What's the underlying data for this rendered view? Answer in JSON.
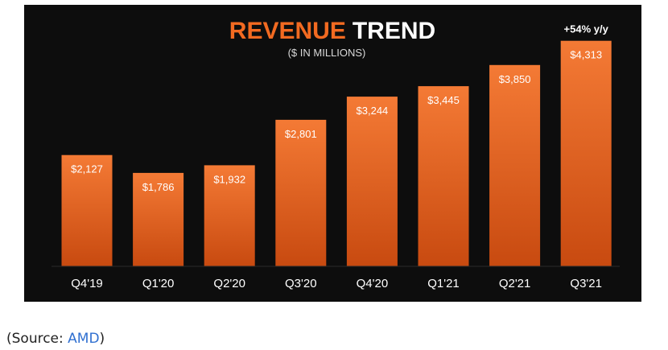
{
  "colors": {
    "background": "#0d0d0d",
    "title_accent": "#f26a21",
    "title_main": "#ffffff",
    "bar_top": "#f47a35",
    "bar_bottom": "#c84a10",
    "label_text": "#ffffff",
    "link": "#2f6fd0"
  },
  "chart_data": {
    "type": "bar",
    "title_accent": "REVENUE",
    "title_main": "TREND",
    "subtitle": "($ IN MILLIONS)",
    "categories": [
      "Q4'19",
      "Q1'20",
      "Q2'20",
      "Q3'20",
      "Q4'20",
      "Q1'21",
      "Q2'21",
      "Q3'21"
    ],
    "values": [
      2127,
      1786,
      1932,
      2801,
      3244,
      3445,
      3850,
      4313
    ],
    "value_labels": [
      "$2,127",
      "$1,786",
      "$1,932",
      "$2,801",
      "$3,244",
      "$3,445",
      "$3,850",
      "$4,313"
    ],
    "annotation": "+54% y/y",
    "ylim": [
      0,
      5000
    ],
    "grid": false,
    "legend": "none"
  },
  "source": {
    "prefix": "(Source: ",
    "link_text": "AMD",
    "suffix": ")"
  }
}
